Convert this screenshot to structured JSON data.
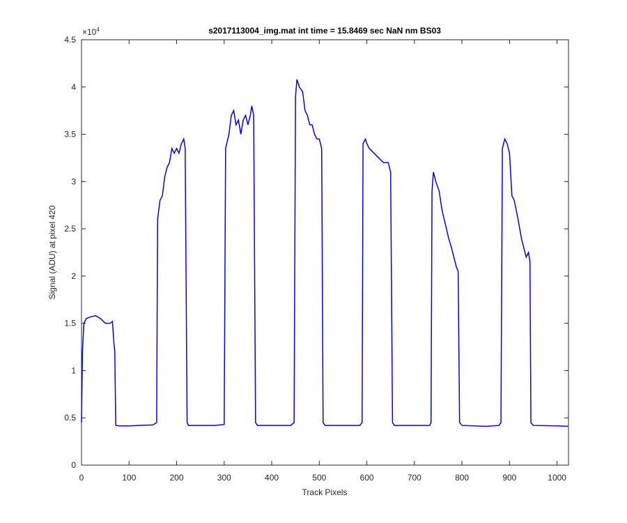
{
  "chart_data": {
    "type": "line",
    "title": "s2017113004_img.mat int time = 15.8469 sec  NaN nm BS03",
    "x_label": "Track Pixels",
    "y_label": "Signal (ADU) at pixel 420",
    "y_exponent_base": "×10",
    "y_exponent": "4",
    "xlim": [
      0,
      1024
    ],
    "ylim": [
      0,
      4.5
    ],
    "xticks": [
      0,
      100,
      200,
      300,
      400,
      500,
      600,
      700,
      800,
      900,
      1000
    ],
    "yticks": [
      0,
      0.5,
      1,
      1.5,
      2,
      2.5,
      3,
      3.5,
      4,
      4.5
    ],
    "series": [
      {
        "color": "#0000ff",
        "x": [
          0,
          2,
          5,
          10,
          20,
          30,
          40,
          50,
          60,
          65,
          68,
          70,
          72,
          80,
          100,
          120,
          150,
          158,
          160,
          165,
          170,
          175,
          180,
          185,
          190,
          195,
          200,
          205,
          210,
          215,
          218,
          222,
          225,
          250,
          280,
          300,
          303,
          310,
          315,
          320,
          325,
          330,
          335,
          340,
          345,
          350,
          355,
          358,
          362,
          366,
          370,
          400,
          440,
          447,
          450,
          453,
          458,
          465,
          470,
          475,
          480,
          485,
          490,
          495,
          500,
          505,
          508,
          512,
          550,
          585,
          590,
          592,
          597,
          600,
          605,
          615,
          625,
          635,
          645,
          650,
          654,
          658,
          700,
          732,
          735,
          737,
          740,
          745,
          752,
          758,
          765,
          772,
          778,
          783,
          788,
          792,
          795,
          800,
          850,
          878,
          882,
          885,
          890,
          895,
          900,
          905,
          910,
          918,
          925,
          930,
          935,
          940,
          943,
          945,
          950,
          1000,
          1023
        ],
        "values": [
          0.45,
          1.2,
          1.5,
          1.55,
          1.57,
          1.58,
          1.55,
          1.5,
          1.5,
          1.52,
          1.3,
          1.2,
          0.42,
          0.415,
          0.415,
          0.42,
          0.425,
          0.45,
          2.6,
          2.8,
          2.85,
          3.05,
          3.15,
          3.2,
          3.35,
          3.3,
          3.35,
          3.3,
          3.4,
          3.45,
          3.35,
          0.45,
          0.42,
          0.42,
          0.42,
          0.43,
          3.35,
          3.5,
          3.7,
          3.75,
          3.6,
          3.65,
          3.5,
          3.65,
          3.7,
          3.6,
          3.7,
          3.8,
          3.7,
          0.45,
          0.42,
          0.42,
          0.42,
          0.45,
          3.9,
          4.08,
          4.0,
          3.95,
          3.75,
          3.7,
          3.6,
          3.6,
          3.5,
          3.45,
          3.45,
          3.35,
          0.45,
          0.42,
          0.42,
          0.42,
          0.45,
          3.4,
          3.45,
          3.4,
          3.35,
          3.3,
          3.25,
          3.2,
          3.2,
          3.1,
          0.45,
          0.42,
          0.42,
          0.42,
          0.45,
          2.9,
          3.1,
          3.0,
          2.9,
          2.7,
          2.55,
          2.4,
          2.3,
          2.2,
          2.1,
          2.05,
          0.45,
          0.42,
          0.41,
          0.42,
          0.45,
          3.35,
          3.45,
          3.4,
          3.3,
          2.85,
          2.8,
          2.6,
          2.4,
          2.3,
          2.2,
          2.25,
          2.15,
          0.45,
          0.42,
          0.415,
          0.41
        ]
      }
    ]
  }
}
